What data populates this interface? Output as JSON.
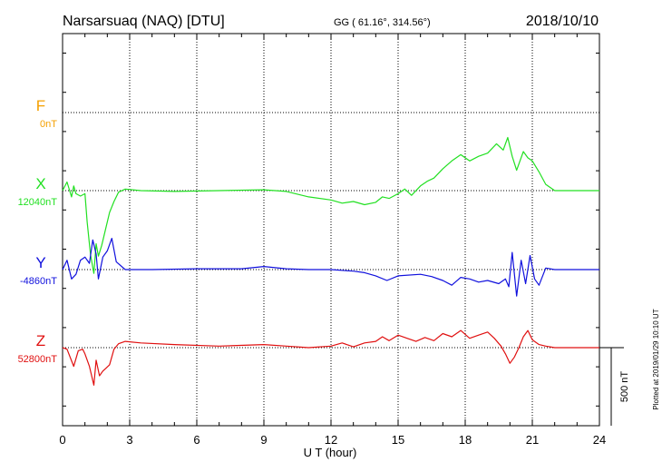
{
  "header": {
    "station": "Narsarsuaq (NAQ)  [DTU]",
    "coords": "GG ( 61.16°, 314.56°)",
    "date": "2018/10/10"
  },
  "footer": {
    "plotted": "Plotted at 2019/01/29 10:10 UT"
  },
  "scale_bar": {
    "label": "500 nT",
    "value_nT": 500
  },
  "colors": {
    "F": "#f5a000",
    "X": "#22e022",
    "Y": "#1010dd",
    "Z": "#e01010"
  },
  "chart_data": {
    "type": "line",
    "title": "Narsarsuaq (NAQ)  [DTU]",
    "xlabel": "U T (hour)",
    "xlim": [
      0,
      24
    ],
    "xticks": [
      0,
      3,
      6,
      9,
      12,
      15,
      18,
      21,
      24
    ],
    "units": "nT",
    "grid": true,
    "series": [
      {
        "name": "F",
        "baseline_label": "0nT",
        "baseline": 0,
        "x": [],
        "values": []
      },
      {
        "name": "X",
        "baseline_label": "12040nT",
        "baseline": 12040,
        "x": [
          0,
          0.2,
          0.4,
          0.5,
          0.6,
          0.8,
          1.0,
          1.1,
          1.25,
          1.4,
          1.5,
          1.6,
          1.75,
          1.9,
          2.1,
          2.3,
          2.5,
          2.8,
          3.5,
          5,
          7,
          9,
          10,
          11,
          12,
          12.5,
          13,
          13.5,
          14,
          14.3,
          14.6,
          15,
          15.3,
          15.6,
          16,
          16.3,
          16.6,
          17,
          17.4,
          17.8,
          18.2,
          18.6,
          19,
          19.4,
          19.7,
          19.9,
          20.1,
          20.3,
          20.6,
          20.8,
          21.0,
          21.3,
          21.6,
          22.0,
          23,
          24
        ],
        "values": [
          12040,
          12095,
          12000,
          12070,
          12020,
          12005,
          12020,
          11840,
          11630,
          11510,
          11700,
          11620,
          11690,
          11780,
          11900,
          11970,
          12030,
          12050,
          12040,
          12035,
          12040,
          12045,
          12035,
          12000,
          11980,
          11960,
          11970,
          11950,
          11965,
          12000,
          11990,
          12020,
          12050,
          12010,
          12070,
          12100,
          12120,
          12180,
          12230,
          12270,
          12230,
          12260,
          12280,
          12340,
          12300,
          12380,
          12260,
          12170,
          12290,
          12250,
          12230,
          12160,
          12080,
          12040,
          12040,
          12040
        ]
      },
      {
        "name": "Y",
        "baseline_label": "-4860nT",
        "baseline": -4860,
        "x": [
          0,
          0.2,
          0.4,
          0.6,
          0.8,
          1.0,
          1.2,
          1.35,
          1.5,
          1.6,
          1.8,
          2.0,
          2.2,
          2.4,
          2.8,
          4,
          6,
          8,
          9,
          10,
          11,
          12,
          13,
          13.5,
          14,
          14.5,
          15,
          16,
          16.5,
          17,
          17.4,
          17.8,
          18.2,
          18.6,
          19,
          19.5,
          19.8,
          19.95,
          20.1,
          20.3,
          20.5,
          20.7,
          20.9,
          21.1,
          21.3,
          21.6,
          22,
          23,
          24
        ],
        "values": [
          -4860,
          -4800,
          -4920,
          -4890,
          -4800,
          -4780,
          -4820,
          -4670,
          -4760,
          -4920,
          -4780,
          -4740,
          -4660,
          -4810,
          -4860,
          -4860,
          -4855,
          -4855,
          -4840,
          -4855,
          -4860,
          -4860,
          -4870,
          -4880,
          -4900,
          -4930,
          -4900,
          -4890,
          -4905,
          -4930,
          -4960,
          -4910,
          -4920,
          -4940,
          -4930,
          -4950,
          -4920,
          -4970,
          -4750,
          -5030,
          -4800,
          -4950,
          -4770,
          -4920,
          -4960,
          -4850,
          -4860,
          -4860,
          -4860
        ]
      },
      {
        "name": "Z",
        "baseline_label": "52800nT",
        "baseline": 52800,
        "x": [
          0,
          0.2,
          0.5,
          0.7,
          0.9,
          1.0,
          1.2,
          1.4,
          1.5,
          1.65,
          1.8,
          1.95,
          2.1,
          2.3,
          2.5,
          2.8,
          3.5,
          5,
          7,
          9,
          10,
          11,
          12,
          12.5,
          13,
          13.5,
          14,
          14.3,
          14.6,
          15,
          15.4,
          15.8,
          16.2,
          16.6,
          17,
          17.4,
          17.8,
          18.2,
          18.6,
          19,
          19.3,
          19.6,
          19.8,
          20.0,
          20.2,
          20.4,
          20.6,
          20.8,
          21.0,
          21.3,
          21.6,
          22,
          23,
          24
        ],
        "values": [
          52800,
          52790,
          52680,
          52780,
          52790,
          52760,
          52680,
          52560,
          52720,
          52620,
          52650,
          52670,
          52690,
          52790,
          52825,
          52840,
          52830,
          52820,
          52810,
          52820,
          52810,
          52800,
          52810,
          52830,
          52805,
          52830,
          52840,
          52870,
          52845,
          52880,
          52860,
          52840,
          52865,
          52845,
          52890,
          52870,
          52910,
          52860,
          52880,
          52900,
          52860,
          52810,
          52760,
          52700,
          52740,
          52800,
          52870,
          52910,
          52850,
          52820,
          52810,
          52800,
          52800,
          52800
        ]
      }
    ]
  }
}
